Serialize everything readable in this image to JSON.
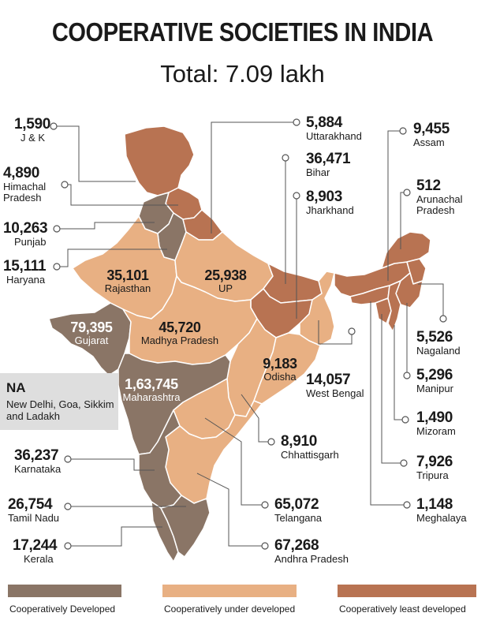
{
  "title": "COOPERATIVE SOCIETIES IN INDIA",
  "subtitle": "Total: 7.09 lakh",
  "colors": {
    "developed": "#8a7566",
    "under_developed": "#e8b083",
    "least_developed": "#b87352",
    "border": "#ffffff",
    "leader": "#555555"
  },
  "states": {
    "jk": {
      "value": "1,590",
      "name": "J & K",
      "category": "least_developed"
    },
    "himachal": {
      "value": "4,890",
      "name": "Himachal Pradesh",
      "category": "least_developed"
    },
    "punjab": {
      "value": "10,263",
      "name": "Punjab",
      "category": "developed"
    },
    "haryana": {
      "value": "15,111",
      "name": "Haryana",
      "category": "developed"
    },
    "rajasthan": {
      "value": "35,101",
      "name": "Rajasthan",
      "category": "under_developed"
    },
    "up": {
      "value": "25,938",
      "name": "UP",
      "category": "under_developed"
    },
    "gujarat": {
      "value": "79,395",
      "name": "Gujarat",
      "category": "developed"
    },
    "mp": {
      "value": "45,720",
      "name": "Madhya Pradesh",
      "category": "under_developed"
    },
    "maharashtra": {
      "value": "1,63,745",
      "name": "Maharashtra",
      "category": "developed"
    },
    "odisha": {
      "value": "9,183",
      "name": "Odisha",
      "category": "under_developed"
    },
    "uttarakhand": {
      "value": "5,884",
      "name": "Uttarakhand",
      "category": "least_developed"
    },
    "bihar": {
      "value": "36,471",
      "name": "Bihar",
      "category": "least_developed"
    },
    "jharkhand": {
      "value": "8,903",
      "name": "Jharkhand",
      "category": "least_developed"
    },
    "west_bengal": {
      "value": "14,057",
      "name": "West Bengal",
      "category": "under_developed"
    },
    "chhattisgarh": {
      "value": "8,910",
      "name": "Chhattisgarh",
      "category": "under_developed"
    },
    "telangana": {
      "value": "65,072",
      "name": "Telangana",
      "category": "under_developed"
    },
    "andhra": {
      "value": "67,268",
      "name": "Andhra Pradesh",
      "category": "under_developed"
    },
    "karnataka": {
      "value": "36,237",
      "name": "Karnataka",
      "category": "developed"
    },
    "tamil_nadu": {
      "value": "26,754",
      "name": "Tamil Nadu",
      "category": "developed"
    },
    "kerala": {
      "value": "17,244",
      "name": "Kerala",
      "category": "developed"
    },
    "assam": {
      "value": "9,455",
      "name": "Assam",
      "category": "least_developed"
    },
    "arunachal": {
      "value": "512",
      "name": "Arunachal Pradesh",
      "category": "least_developed"
    },
    "nagaland": {
      "value": "5,526",
      "name": "Nagaland",
      "category": "least_developed"
    },
    "manipur": {
      "value": "5,296",
      "name": "Manipur",
      "category": "least_developed"
    },
    "mizoram": {
      "value": "1,490",
      "name": "Mizoram",
      "category": "least_developed"
    },
    "tripura": {
      "value": "7,926",
      "name": "Tripura",
      "category": "least_developed"
    },
    "meghalaya": {
      "value": "1,148",
      "name": "Meghalaya",
      "category": "least_developed"
    }
  },
  "na_box": {
    "heading": "NA",
    "text": "New Delhi, Goa, Sikkim and Ladakh"
  },
  "legend": [
    {
      "key": "developed",
      "label": "Cooperatively Developed"
    },
    {
      "key": "under_developed",
      "label": "Cooperatively under developed"
    },
    {
      "key": "least_developed",
      "label": "Cooperatively least developed"
    }
  ]
}
